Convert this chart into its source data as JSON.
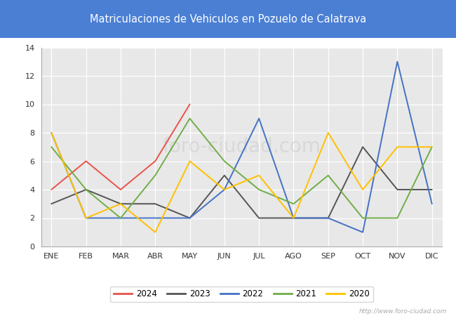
{
  "title": "Matriculaciones de Vehiculos en Pozuelo de Calatrava",
  "title_bg_color": "#4a7fd4",
  "title_text_color": "#ffffff",
  "fig_bg_color": "#ffffff",
  "plot_bg_color": "#e8e8e8",
  "months": [
    "ENE",
    "FEB",
    "MAR",
    "ABR",
    "MAY",
    "JUN",
    "JUL",
    "AGO",
    "SEP",
    "OCT",
    "NOV",
    "DIC"
  ],
  "series": {
    "2024": {
      "color": "#e8534a",
      "data": [
        4,
        6,
        4,
        6,
        10,
        null,
        null,
        null,
        null,
        null,
        null,
        null
      ]
    },
    "2023": {
      "color": "#555555",
      "data": [
        3,
        4,
        3,
        3,
        2,
        5,
        2,
        2,
        2,
        7,
        4,
        4
      ]
    },
    "2022": {
      "color": "#4472c4",
      "data": [
        8,
        2,
        2,
        2,
        2,
        4,
        9,
        2,
        2,
        1,
        13,
        3
      ]
    },
    "2021": {
      "color": "#70ad47",
      "data": [
        7,
        4,
        2,
        5,
        9,
        6,
        4,
        3,
        5,
        2,
        2,
        7
      ]
    },
    "2020": {
      "color": "#ffc000",
      "data": [
        8,
        2,
        3,
        1,
        6,
        4,
        5,
        2,
        8,
        4,
        7,
        7
      ]
    }
  },
  "ylim": [
    0,
    14
  ],
  "yticks": [
    0,
    2,
    4,
    6,
    8,
    10,
    12,
    14
  ],
  "watermark": "http://www.foro-ciudad.com",
  "legend_order": [
    "2024",
    "2023",
    "2022",
    "2021",
    "2020"
  ]
}
